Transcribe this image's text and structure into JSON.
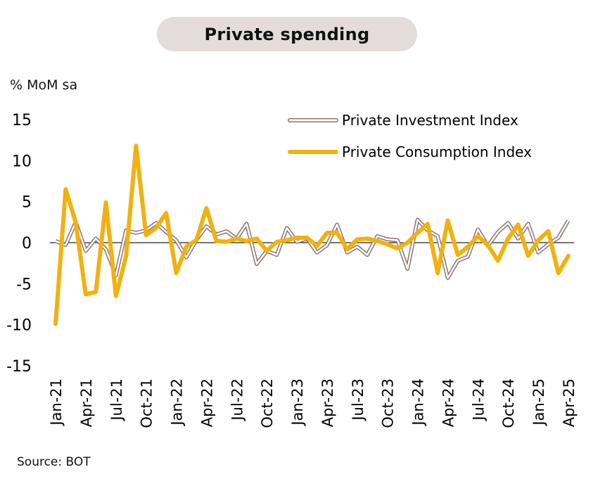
{
  "header": {
    "title": "Private spending"
  },
  "axis": {
    "unit": "% MoM sa"
  },
  "footer": {
    "source": "Source: BOT"
  },
  "chart_data": {
    "type": "line",
    "title": "Private spending",
    "ylabel": "% MoM sa",
    "xlabel": "",
    "ylim": [
      -15,
      15
    ],
    "yticks": [
      15,
      10,
      5,
      0,
      -5,
      -10,
      -15
    ],
    "x": [
      "Jan-21",
      "Feb-21",
      "Mar-21",
      "Apr-21",
      "May-21",
      "Jun-21",
      "Jul-21",
      "Aug-21",
      "Sep-21",
      "Oct-21",
      "Nov-21",
      "Dec-21",
      "Jan-22",
      "Feb-22",
      "Mar-22",
      "Apr-22",
      "May-22",
      "Jun-22",
      "Jul-22",
      "Aug-22",
      "Sep-22",
      "Oct-22",
      "Nov-22",
      "Dec-22",
      "Jan-23",
      "Feb-23",
      "Mar-23",
      "Apr-23",
      "May-23",
      "Jun-23",
      "Jul-23",
      "Aug-23",
      "Sep-23",
      "Oct-23",
      "Nov-23",
      "Dec-23",
      "Jan-24",
      "Feb-24",
      "Mar-24",
      "Apr-24",
      "May-24",
      "Jun-24",
      "Jul-24",
      "Aug-24",
      "Sep-24",
      "Oct-24",
      "Nov-24",
      "Dec-24",
      "Jan-25",
      "Feb-25",
      "Mar-25",
      "Apr-25"
    ],
    "xtick_labels": [
      "Jan-21",
      "Apr-21",
      "Jul-21",
      "Oct-21",
      "Jan-22",
      "Apr-22",
      "Jul-22",
      "Oct-22",
      "Jan-23",
      "Apr-23",
      "Jul-23",
      "Oct-23",
      "Jan-24",
      "Apr-24",
      "Jul-24",
      "Oct-24",
      "Jan-25",
      "Apr-25"
    ],
    "series": [
      {
        "name": "Private Investment Index",
        "color": "#8a7470",
        "style": "double-outline",
        "values": [
          0.2,
          -0.3,
          2.5,
          -1.0,
          0.5,
          -0.8,
          -4.0,
          1.5,
          1.2,
          1.5,
          2.4,
          1.3,
          0.3,
          -1.8,
          0.3,
          2.0,
          1.0,
          1.4,
          0.5,
          2.3,
          -2.6,
          -1.0,
          -1.5,
          1.8,
          0.1,
          0.5,
          -1.2,
          -0.3,
          2.2,
          -1.2,
          -0.5,
          -1.5,
          0.8,
          0.4,
          0.3,
          -3.2,
          2.8,
          1.5,
          0.8,
          -4.3,
          -2.2,
          -1.7,
          1.6,
          -0.4,
          1.3,
          2.4,
          0.5,
          2.3,
          -1.2,
          -0.2,
          0.6,
          2.7
        ]
      },
      {
        "name": "Private Consumption Index",
        "color": "#f2b10e",
        "style": "solid",
        "values": [
          -9.9,
          6.5,
          2.5,
          -6.3,
          -6.0,
          4.9,
          -6.5,
          -1.7,
          11.8,
          0.9,
          1.8,
          3.6,
          -3.7,
          -0.5,
          0.3,
          4.2,
          0.2,
          0.1,
          0.5,
          0.2,
          0.5,
          -1.0,
          0.1,
          0.3,
          0.6,
          0.6,
          -0.4,
          1.2,
          1.2,
          -0.8,
          0.4,
          0.5,
          0.2,
          -0.2,
          -0.7,
          0.0,
          1.2,
          2.3,
          -3.7,
          2.7,
          -1.5,
          -0.5,
          0.8,
          -0.3,
          -2.2,
          0.5,
          2.2,
          -1.6,
          0.3,
          1.4,
          -3.7,
          -1.6
        ]
      }
    ],
    "legend": {
      "position": "top-right"
    },
    "grid": false
  }
}
